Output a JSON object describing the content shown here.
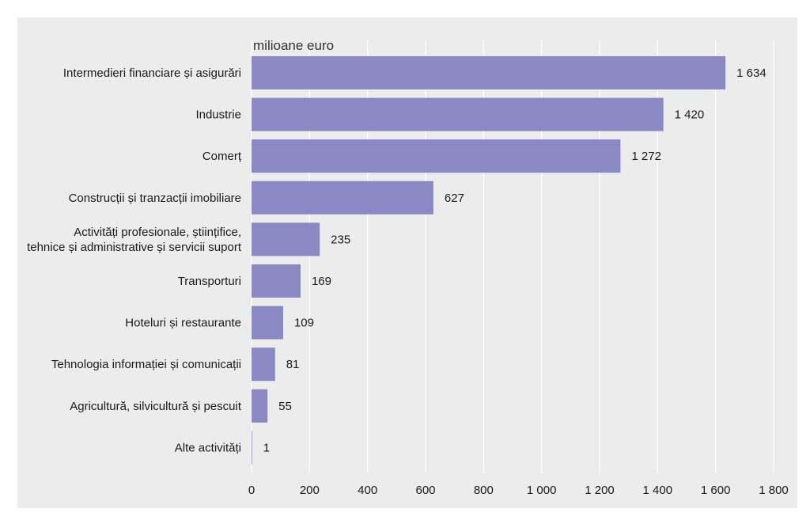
{
  "chart_data": {
    "type": "bar",
    "orientation": "horizontal",
    "unit_label": "milioane euro",
    "categories": [
      [
        "Intermedieri financiare și asigurări"
      ],
      [
        "Industrie"
      ],
      [
        "Comerț"
      ],
      [
        "Construcții și tranzacții imobiliare"
      ],
      [
        "Activități profesionale, științifice,",
        "tehnice și administrative și servicii suport"
      ],
      [
        "Transporturi"
      ],
      [
        "Hoteluri și restaurante"
      ],
      [
        "Tehnologia informației și comunicații"
      ],
      [
        "Agricultură, silvicultură și pescuit"
      ],
      [
        "Alte activități"
      ]
    ],
    "values": [
      1634,
      1420,
      1272,
      627,
      235,
      169,
      109,
      81,
      55,
      1
    ],
    "value_labels": [
      "1 634",
      "1 420",
      "1 272",
      "627",
      "235",
      "169",
      "109",
      "81",
      "55",
      "1"
    ],
    "xlim": [
      0,
      1800
    ],
    "ticks": [
      0,
      200,
      400,
      600,
      800,
      1000,
      1200,
      1400,
      1600,
      1800
    ],
    "tick_labels": [
      "0",
      "200",
      "400",
      "600",
      "800",
      "1 000",
      "1 200",
      "1 400",
      "1 600",
      "1 800"
    ],
    "gridlines": "vertical",
    "colors": {
      "bar": "#8a89c4",
      "grid": "#ffffff",
      "background": "#ececec"
    }
  }
}
